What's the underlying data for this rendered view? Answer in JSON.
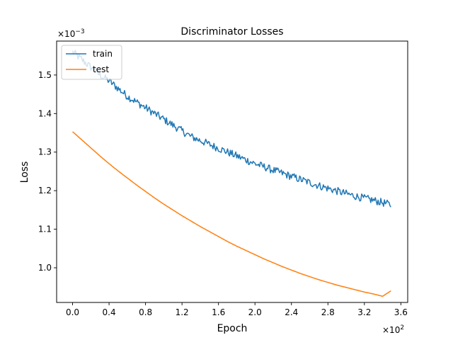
{
  "chart_data": {
    "type": "line",
    "title": "Discriminator Losses",
    "xlabel": "Epoch",
    "ylabel": "Loss",
    "x_scale_label": "×10",
    "x_scale_exp": "2",
    "y_scale_label": "×10",
    "y_scale_exp": "−3",
    "xlim": [
      -0.175,
      3.675
    ],
    "ylim": [
      0.91,
      1.588
    ],
    "x_ticks": [
      0.0,
      0.4,
      0.8,
      1.2,
      1.6,
      2.0,
      2.4,
      2.8,
      3.2,
      3.6
    ],
    "x_tick_labels": [
      "0.0",
      "0.4",
      "0.8",
      "1.2",
      "1.6",
      "2.0",
      "2.4",
      "2.8",
      "3.2",
      "3.6"
    ],
    "y_ticks": [
      1.0,
      1.1,
      1.2,
      1.3,
      1.4,
      1.5
    ],
    "y_tick_labels": [
      "1.0",
      "1.1",
      "1.2",
      "1.3",
      "1.4",
      "1.5"
    ],
    "legend_position": "upper-left",
    "series": [
      {
        "name": "train",
        "color": "#1f77b4",
        "x": [
          0.0,
          0.1,
          0.2,
          0.3,
          0.4,
          0.5,
          0.6,
          0.7,
          0.8,
          0.9,
          1.0,
          1.1,
          1.2,
          1.3,
          1.4,
          1.5,
          1.6,
          1.7,
          1.8,
          1.9,
          2.0,
          2.1,
          2.2,
          2.3,
          2.4,
          2.5,
          2.6,
          2.7,
          2.8,
          2.9,
          3.0,
          3.1,
          3.2,
          3.3,
          3.4,
          3.49
        ],
        "y": [
          1.56,
          1.54,
          1.52,
          1.5,
          1.485,
          1.465,
          1.445,
          1.43,
          1.415,
          1.4,
          1.385,
          1.37,
          1.355,
          1.34,
          1.33,
          1.32,
          1.31,
          1.3,
          1.29,
          1.28,
          1.27,
          1.262,
          1.253,
          1.245,
          1.237,
          1.229,
          1.221,
          1.213,
          1.206,
          1.199,
          1.192,
          1.186,
          1.18,
          1.175,
          1.169,
          1.163
        ],
        "noise_amplitude": 0.01
      },
      {
        "name": "test",
        "color": "#ff7f0e",
        "x": [
          0.0,
          0.1,
          0.2,
          0.3,
          0.4,
          0.5,
          0.6,
          0.7,
          0.8,
          0.9,
          1.0,
          1.1,
          1.2,
          1.3,
          1.4,
          1.5,
          1.6,
          1.7,
          1.8,
          1.9,
          2.0,
          2.1,
          2.2,
          2.3,
          2.4,
          2.5,
          2.6,
          2.7,
          2.8,
          2.9,
          3.0,
          3.1,
          3.2,
          3.3,
          3.4,
          3.49
        ],
        "y": [
          1.353,
          1.332,
          1.311,
          1.29,
          1.27,
          1.251,
          1.233,
          1.215,
          1.198,
          1.181,
          1.165,
          1.15,
          1.135,
          1.121,
          1.107,
          1.094,
          1.081,
          1.068,
          1.056,
          1.045,
          1.034,
          1.023,
          1.013,
          1.003,
          0.994,
          0.985,
          0.977,
          0.969,
          0.962,
          0.955,
          0.949,
          0.943,
          0.937,
          0.932,
          0.926,
          0.94
        ],
        "noise_amplitude": 0.0
      }
    ]
  }
}
